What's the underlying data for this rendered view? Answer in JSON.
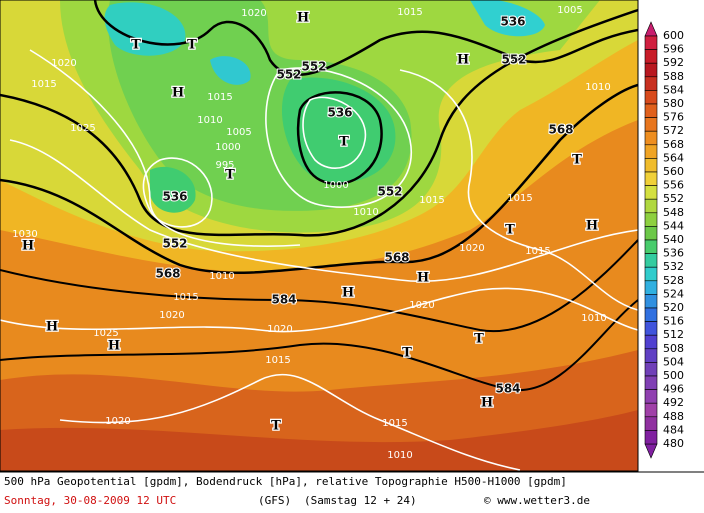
{
  "map": {
    "contour_labels": [
      "536",
      "552",
      "552",
      "552",
      "536",
      "568",
      "552",
      "536",
      "552",
      "568",
      "568",
      "584",
      "584",
      "1020",
      "1015",
      "1005",
      "1020",
      "1015",
      "1015",
      "1010",
      "1025",
      "1005",
      "1000",
      "995",
      "1000",
      "1010",
      "1015",
      "1015",
      "1020",
      "1015",
      "1030",
      "1010",
      "1015",
      "1020",
      "1020",
      "1025",
      "1020",
      "1015",
      "1010",
      "1020",
      "1015",
      "1010",
      "1010"
    ],
    "pressure_centers": [
      "T",
      "T",
      "H",
      "H",
      "H",
      "T",
      "T",
      "T",
      "H",
      "T",
      "H",
      "H",
      "H",
      "H",
      "H",
      "T",
      "T",
      "H",
      "T"
    ]
  },
  "colorbar": {
    "levels": [
      600,
      596,
      592,
      588,
      584,
      580,
      576,
      572,
      568,
      564,
      560,
      556,
      552,
      548,
      544,
      540,
      536,
      532,
      528,
      524,
      520,
      516,
      512,
      508,
      504,
      500,
      496,
      492,
      488,
      484,
      480
    ],
    "colors": [
      "#c81e6e",
      "#d02040",
      "#c81c28",
      "#b81820",
      "#c83020",
      "#d84a1c",
      "#e0601c",
      "#e8761e",
      "#ee8e20",
      "#f0a424",
      "#f0bc2c",
      "#f0d038",
      "#d4e040",
      "#b0d840",
      "#8ed040",
      "#6cc848",
      "#48cc6c",
      "#34cca0",
      "#30cccc",
      "#30b0e0",
      "#3090e0",
      "#3070e0",
      "#4054dc",
      "#5040d0",
      "#6040c4",
      "#7040b8",
      "#8040b4",
      "#9040b0",
      "#a040a8",
      "#9030a0",
      "#8020a0"
    ]
  },
  "footer": {
    "description": "500 hPa Geopotential [gpdm], Bodendruck [hPa], relative Topographie H500-H1000 [gpdm]",
    "date": "Sonntag, 30-08-2009  12 UTC",
    "model": "(GFS)",
    "run": "(Samstag 12 + 24)",
    "credit": "© www.wetter3.de"
  }
}
